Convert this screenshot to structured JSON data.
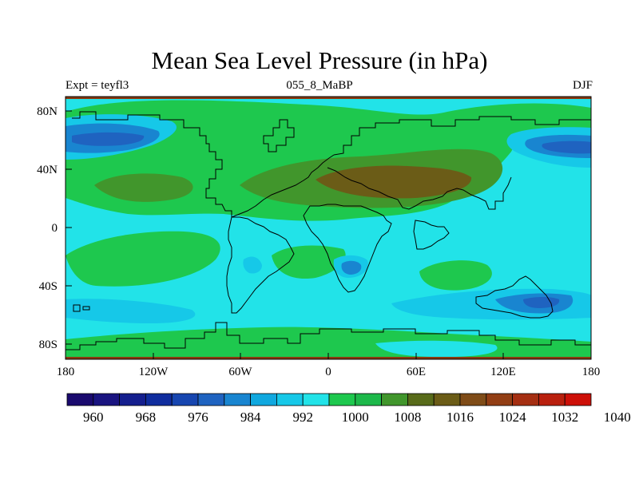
{
  "title": "Mean Sea Level Pressure (in hPa)",
  "subtitle": {
    "left": "Expt = teyfl3",
    "center": "055_8_MaBP",
    "right": "DJF"
  },
  "map": {
    "lat_labels": [
      "80N",
      "40N",
      "0",
      "40S",
      "80S"
    ],
    "lon_labels": [
      "180",
      "120W",
      "60W",
      "0",
      "60E",
      "120E",
      "180"
    ]
  },
  "colorbar": {
    "labels": [
      "960",
      "968",
      "976",
      "984",
      "992",
      "1000",
      "1008",
      "1016",
      "1024",
      "1032",
      "1040"
    ],
    "colors": [
      "#1a0a6e",
      "#1a1480",
      "#151f8e",
      "#102d9e",
      "#1746b0",
      "#1f63c0",
      "#1985d0",
      "#10a8df",
      "#16c8e8",
      "#22e3e8",
      "#1ec84e",
      "#1db84a",
      "#41962c",
      "#586b1a",
      "#6b5c17",
      "#7f4c18",
      "#923e14",
      "#a52f12",
      "#b9200e",
      "#cd1008"
    ]
  },
  "colors": {
    "bg_cyan": "#22e3e8",
    "light_blue": "#16c8e8",
    "mid_blue": "#1985d0",
    "dark_blue": "#1f63c0",
    "green": "#1ec84e",
    "olive": "#41962c",
    "brown": "#6b5c17"
  }
}
